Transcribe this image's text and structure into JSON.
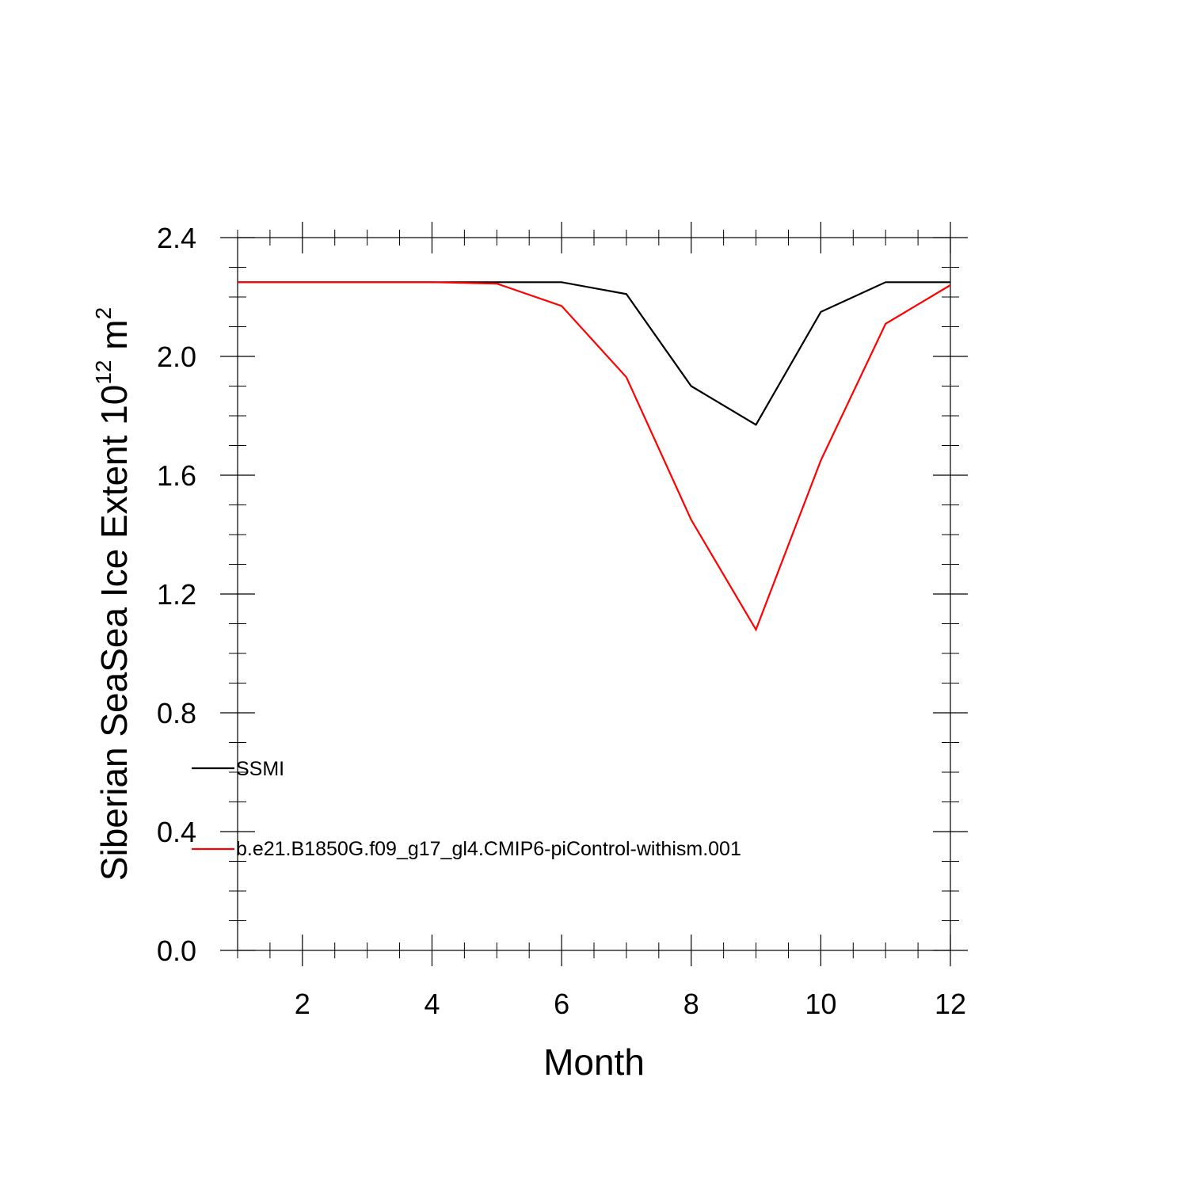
{
  "chart_data": {
    "type": "line",
    "title": "",
    "xlabel": "Month",
    "ylabel": {
      "main": "Siberian SeaSea Ice Extent 10",
      "exp1": "12",
      "unit": " m",
      "exp2": "2"
    },
    "xlim": [
      1,
      12
    ],
    "ylim": [
      0.0,
      2.4
    ],
    "xticks": [
      2,
      4,
      6,
      8,
      10,
      12
    ],
    "xtick_labels": [
      "2",
      "4",
      "6",
      "8",
      "10",
      "12"
    ],
    "yticks": [
      0.0,
      0.4,
      0.8,
      1.2,
      1.6,
      2.0,
      2.4
    ],
    "ytick_labels": [
      "0.0",
      "0.4",
      "0.8",
      "1.2",
      "1.6",
      "2.0",
      "2.4"
    ],
    "x": [
      1,
      2,
      3,
      4,
      5,
      6,
      7,
      8,
      9,
      10,
      11,
      12
    ],
    "series": [
      {
        "name": "SSMI",
        "color": "#000000",
        "values": [
          2.25,
          2.25,
          2.25,
          2.25,
          2.25,
          2.25,
          2.21,
          1.9,
          1.77,
          2.15,
          2.25,
          2.25
        ]
      },
      {
        "name": "b.e21.B1850G.f09_g17_gl4.CMIP6-piControl-withism.001",
        "color": "#ff0000",
        "values": [
          2.25,
          2.25,
          2.25,
          2.25,
          2.245,
          2.17,
          1.93,
          1.45,
          1.08,
          1.65,
          2.11,
          2.24
        ]
      }
    ],
    "grid": false,
    "legend_position": "lower-left inside plot"
  }
}
